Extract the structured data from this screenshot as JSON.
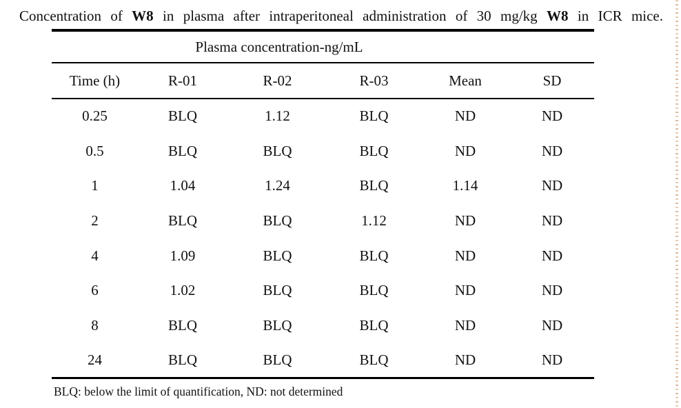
{
  "caption": {
    "segments": [
      {
        "text": "Concentration of ",
        "bold": false
      },
      {
        "text": "W8",
        "bold": true
      },
      {
        "text": " in plasma after intraperitoneal administration of 30 mg/kg ",
        "bold": false
      },
      {
        "text": "W8",
        "bold": true
      },
      {
        "text": " in ICR mice.",
        "bold": false
      }
    ]
  },
  "table": {
    "group_header": "Plasma concentration-ng/mL",
    "columns": [
      "Time (h)",
      "R-01",
      "R-02",
      "R-03",
      "Mean",
      "SD"
    ],
    "rows": [
      [
        "0.25",
        "BLQ",
        "1.12",
        "BLQ",
        "ND",
        "ND"
      ],
      [
        "0.5",
        "BLQ",
        "BLQ",
        "BLQ",
        "ND",
        "ND"
      ],
      [
        "1",
        "1.04",
        "1.24",
        "BLQ",
        "1.14",
        "ND"
      ],
      [
        "2",
        "BLQ",
        "BLQ",
        "1.12",
        "ND",
        "ND"
      ],
      [
        "4",
        "1.09",
        "BLQ",
        "BLQ",
        "ND",
        "ND"
      ],
      [
        "6",
        "1.02",
        "BLQ",
        "BLQ",
        "ND",
        "ND"
      ],
      [
        "8",
        "BLQ",
        "BLQ",
        "BLQ",
        "ND",
        "ND"
      ],
      [
        "24",
        "BLQ",
        "BLQ",
        "BLQ",
        "ND",
        "ND"
      ]
    ],
    "footnote": "BLQ: below the limit of quantification, ND: not determined"
  },
  "style": {
    "background": "#ffffff",
    "text_color": "#111111",
    "rule_color": "#000000",
    "edge_dot_color": "#d9b090"
  }
}
